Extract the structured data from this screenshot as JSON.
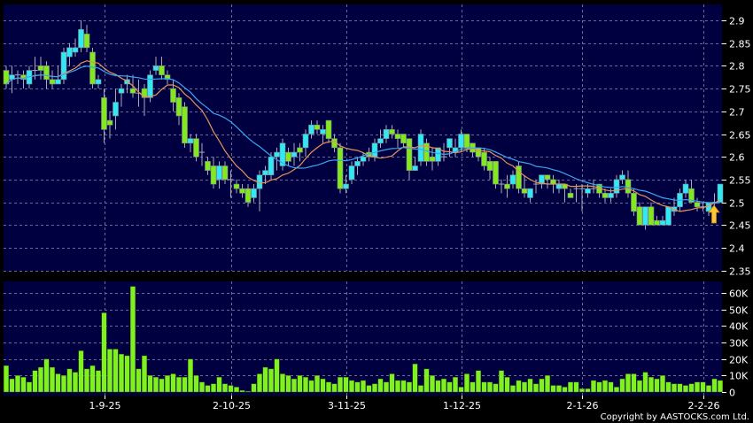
{
  "chart_data": [
    {
      "type": "candlestick",
      "panel": "price",
      "ylim": [
        2.35,
        2.92
      ],
      "yticks": [
        "2.35",
        "2.4",
        "2.45",
        "2.5",
        "2.55",
        "2.6",
        "2.65",
        "2.7",
        "2.75",
        "2.8",
        "2.85",
        "2.9"
      ],
      "grid": true,
      "colors": {
        "background": "#000040",
        "up": "#33e8f5",
        "down": "#84e81e",
        "wick": "#a8a8b8",
        "ma_short": "#e8925a",
        "ma_long": "#3aa6f0",
        "grid": "#6a6a9a",
        "marker": "#ffc832"
      },
      "moving_averages": [
        "ma_short",
        "ma_long"
      ],
      "marker": {
        "type": "up-arrow-icon",
        "index": 122
      },
      "ohlc": [
        [
          2.79,
          2.8,
          2.75,
          2.76
        ],
        [
          2.77,
          2.8,
          2.74,
          2.78
        ],
        [
          2.78,
          2.79,
          2.76,
          2.78
        ],
        [
          2.78,
          2.79,
          2.75,
          2.77
        ],
        [
          2.76,
          2.8,
          2.75,
          2.79
        ],
        [
          2.79,
          2.82,
          2.77,
          2.79
        ],
        [
          2.8,
          2.82,
          2.77,
          2.79
        ],
        [
          2.8,
          2.81,
          2.75,
          2.77
        ],
        [
          2.77,
          2.79,
          2.75,
          2.76
        ],
        [
          2.76,
          2.8,
          2.76,
          2.77
        ],
        [
          2.77,
          2.84,
          2.76,
          2.83
        ],
        [
          2.82,
          2.85,
          2.8,
          2.84
        ],
        [
          2.83,
          2.86,
          2.82,
          2.84
        ],
        [
          2.84,
          2.9,
          2.83,
          2.88
        ],
        [
          2.87,
          2.89,
          2.83,
          2.84
        ],
        [
          2.83,
          2.84,
          2.75,
          2.76
        ],
        [
          2.76,
          2.78,
          2.75,
          2.77
        ],
        [
          2.73,
          2.75,
          2.63,
          2.66
        ],
        [
          2.68,
          2.7,
          2.64,
          2.67
        ],
        [
          2.69,
          2.75,
          2.66,
          2.72
        ],
        [
          2.74,
          2.76,
          2.71,
          2.75
        ],
        [
          2.76,
          2.78,
          2.74,
          2.77
        ],
        [
          2.75,
          2.78,
          2.73,
          2.74
        ],
        [
          2.74,
          2.77,
          2.71,
          2.74
        ],
        [
          2.75,
          2.76,
          2.69,
          2.73
        ],
        [
          2.73,
          2.79,
          2.72,
          2.78
        ],
        [
          2.79,
          2.82,
          2.78,
          2.8
        ],
        [
          2.8,
          2.82,
          2.77,
          2.78
        ],
        [
          2.78,
          2.79,
          2.76,
          2.77
        ],
        [
          2.75,
          2.77,
          2.7,
          2.72
        ],
        [
          2.73,
          2.74,
          2.67,
          2.69
        ],
        [
          2.71,
          2.72,
          2.62,
          2.63
        ],
        [
          2.63,
          2.65,
          2.61,
          2.64
        ],
        [
          2.64,
          2.65,
          2.59,
          2.6
        ],
        [
          2.61,
          2.63,
          2.58,
          2.61
        ],
        [
          2.59,
          2.6,
          2.56,
          2.57
        ],
        [
          2.58,
          2.6,
          2.53,
          2.54
        ],
        [
          2.55,
          2.59,
          2.53,
          2.58
        ],
        [
          2.58,
          2.59,
          2.54,
          2.55
        ],
        [
          2.55,
          2.57,
          2.51,
          2.55
        ],
        [
          2.54,
          2.55,
          2.52,
          2.53
        ],
        [
          2.53,
          2.54,
          2.51,
          2.52
        ],
        [
          2.53,
          2.54,
          2.49,
          2.5
        ],
        [
          2.51,
          2.54,
          2.5,
          2.53
        ],
        [
          2.53,
          2.57,
          2.48,
          2.56
        ],
        [
          2.56,
          2.58,
          2.54,
          2.57
        ],
        [
          2.56,
          2.61,
          2.55,
          2.6
        ],
        [
          2.6,
          2.62,
          2.57,
          2.61
        ],
        [
          2.58,
          2.64,
          2.57,
          2.63
        ],
        [
          2.61,
          2.62,
          2.58,
          2.59
        ],
        [
          2.6,
          2.63,
          2.58,
          2.61
        ],
        [
          2.62,
          2.63,
          2.59,
          2.61
        ],
        [
          2.62,
          2.66,
          2.6,
          2.65
        ],
        [
          2.65,
          2.68,
          2.64,
          2.67
        ],
        [
          2.67,
          2.68,
          2.65,
          2.66
        ],
        [
          2.65,
          2.67,
          2.63,
          2.66
        ],
        [
          2.68,
          2.68,
          2.63,
          2.64
        ],
        [
          2.64,
          2.65,
          2.61,
          2.62
        ],
        [
          2.62,
          2.63,
          2.52,
          2.53
        ],
        [
          2.53,
          2.56,
          2.52,
          2.54
        ],
        [
          2.55,
          2.59,
          2.54,
          2.58
        ],
        [
          2.58,
          2.6,
          2.56,
          2.59
        ],
        [
          2.59,
          2.61,
          2.58,
          2.6
        ],
        [
          2.61,
          2.62,
          2.59,
          2.6
        ],
        [
          2.6,
          2.64,
          2.59,
          2.63
        ],
        [
          2.63,
          2.66,
          2.62,
          2.64
        ],
        [
          2.64,
          2.67,
          2.63,
          2.66
        ],
        [
          2.66,
          2.67,
          2.64,
          2.65
        ],
        [
          2.65,
          2.66,
          2.62,
          2.64
        ],
        [
          2.65,
          2.65,
          2.62,
          2.63
        ],
        [
          2.64,
          2.64,
          2.55,
          2.57
        ],
        [
          2.57,
          2.6,
          2.57,
          2.58
        ],
        [
          2.59,
          2.66,
          2.58,
          2.65
        ],
        [
          2.63,
          2.64,
          2.58,
          2.59
        ],
        [
          2.6,
          2.62,
          2.57,
          2.59
        ],
        [
          2.59,
          2.62,
          2.58,
          2.62
        ],
        [
          2.6,
          2.63,
          2.59,
          2.6
        ],
        [
          2.62,
          2.64,
          2.6,
          2.64
        ],
        [
          2.61,
          2.64,
          2.6,
          2.62
        ],
        [
          2.62,
          2.66,
          2.61,
          2.65
        ],
        [
          2.65,
          2.65,
          2.61,
          2.62
        ],
        [
          2.63,
          2.63,
          2.6,
          2.61
        ],
        [
          2.62,
          2.62,
          2.59,
          2.6
        ],
        [
          2.61,
          2.62,
          2.57,
          2.58
        ],
        [
          2.59,
          2.6,
          2.55,
          2.57
        ],
        [
          2.59,
          2.59,
          2.53,
          2.54
        ],
        [
          2.54,
          2.55,
          2.52,
          2.54
        ],
        [
          2.54,
          2.56,
          2.51,
          2.53
        ],
        [
          2.54,
          2.57,
          2.53,
          2.56
        ],
        [
          2.58,
          2.59,
          2.52,
          2.53
        ],
        [
          2.53,
          2.56,
          2.51,
          2.52
        ],
        [
          2.51,
          2.53,
          2.5,
          2.53
        ],
        [
          2.54,
          2.55,
          2.52,
          2.54
        ],
        [
          2.54,
          2.56,
          2.53,
          2.56
        ],
        [
          2.56,
          2.56,
          2.53,
          2.55
        ],
        [
          2.55,
          2.56,
          2.52,
          2.54
        ],
        [
          2.53,
          2.55,
          2.52,
          2.54
        ],
        [
          2.54,
          2.54,
          2.5,
          2.53
        ],
        [
          2.52,
          2.53,
          2.51,
          2.51
        ],
        [
          2.53,
          2.54,
          2.5,
          2.53
        ],
        [
          2.53,
          2.54,
          2.48,
          2.53
        ],
        [
          2.52,
          2.54,
          2.51,
          2.53
        ],
        [
          2.53,
          2.55,
          2.52,
          2.53
        ],
        [
          2.54,
          2.54,
          2.51,
          2.52
        ],
        [
          2.52,
          2.53,
          2.5,
          2.51
        ],
        [
          2.51,
          2.53,
          2.5,
          2.52
        ],
        [
          2.52,
          2.56,
          2.51,
          2.55
        ],
        [
          2.55,
          2.57,
          2.54,
          2.56
        ],
        [
          2.55,
          2.57,
          2.51,
          2.52
        ],
        [
          2.52,
          2.53,
          2.47,
          2.48
        ],
        [
          2.49,
          2.5,
          2.45,
          2.45
        ],
        [
          2.45,
          2.49,
          2.44,
          2.49
        ],
        [
          2.49,
          2.5,
          2.45,
          2.45
        ],
        [
          2.46,
          2.47,
          2.45,
          2.45
        ],
        [
          2.45,
          2.47,
          2.45,
          2.46
        ],
        [
          2.45,
          2.49,
          2.45,
          2.49
        ],
        [
          2.48,
          2.51,
          2.47,
          2.49
        ],
        [
          2.49,
          2.53,
          2.48,
          2.52
        ],
        [
          2.52,
          2.55,
          2.51,
          2.54
        ],
        [
          2.53,
          2.55,
          2.5,
          2.5
        ],
        [
          2.5,
          2.51,
          2.48,
          2.49
        ],
        [
          2.49,
          2.5,
          2.48,
          2.49
        ],
        [
          2.48,
          2.5,
          2.47,
          2.5
        ],
        [
          2.5,
          2.52,
          2.49,
          2.5
        ],
        [
          2.5,
          2.54,
          2.5,
          2.54
        ]
      ]
    },
    {
      "type": "bar",
      "panel": "volume",
      "ylim": [
        0,
        68
      ],
      "yticks": [
        "0",
        "10K",
        "20K",
        "30K",
        "40K",
        "50K",
        "60K"
      ],
      "grid": true,
      "colors": {
        "bar": "#80f020"
      },
      "values_k": [
        16,
        8,
        10,
        9,
        6,
        13,
        15,
        20,
        15,
        11,
        10,
        14,
        12,
        25,
        14,
        16,
        13,
        48,
        26,
        26,
        23,
        22,
        64,
        14,
        22,
        10,
        9,
        8,
        10,
        11,
        9,
        9,
        20,
        10,
        6,
        4,
        5,
        9,
        5,
        4,
        3,
        1,
        0.5,
        5,
        11,
        15,
        14,
        20,
        11,
        10,
        8,
        10,
        9,
        7,
        10,
        8,
        6,
        5,
        9,
        9,
        7,
        6,
        7,
        4,
        5,
        8,
        6,
        11,
        7,
        7,
        6,
        17,
        4,
        14,
        10,
        7,
        8,
        6,
        9,
        3,
        11,
        6,
        13,
        6,
        6,
        5,
        13,
        9,
        4,
        7,
        6,
        8,
        5,
        8,
        10,
        4,
        4,
        3,
        6,
        6,
        2,
        2,
        7,
        6,
        7,
        6,
        3,
        8,
        11,
        11,
        7,
        12,
        9,
        8,
        10,
        6,
        5,
        5,
        4,
        5,
        6,
        6,
        4,
        8,
        7
      ]
    }
  ],
  "x_ticks": [
    {
      "label": "1-9-25",
      "index": 17
    },
    {
      "label": "2-10-25",
      "index": 39
    },
    {
      "label": "3-11-25",
      "index": 59
    },
    {
      "label": "1-12-25",
      "index": 79
    },
    {
      "label": "2-1-26",
      "index": 100
    },
    {
      "label": "2-2-26",
      "index": 121
    }
  ],
  "copyright": "Copyright by AASTOCKS.com Ltd."
}
